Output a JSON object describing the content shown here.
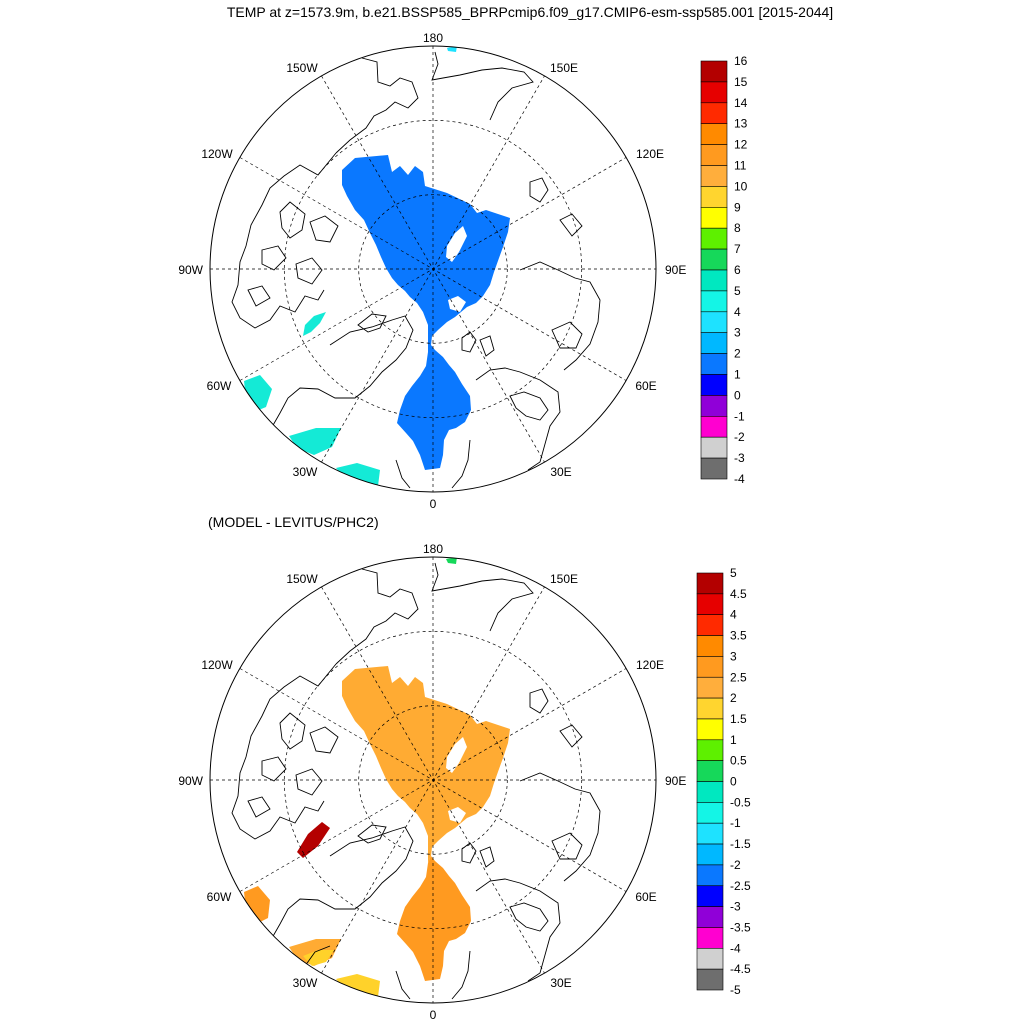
{
  "title": "TEMP at z=1573.9m, b.e21.BSSP585_BPRPcmip6.f09_g17.CMIP6-esm-ssp585.001 [2015-2044]",
  "subtitle": "(MODEL - LEVITUS/PHC2)",
  "lon_labels": {
    "north": "180",
    "south": "0",
    "west": "90W",
    "east": "90E",
    "nw_upper": "150W",
    "nw_lower": "120W",
    "ne_upper": "150E",
    "ne_lower": "120E",
    "sw_upper": "60W",
    "sw_lower": "30W",
    "se_upper": "60E",
    "se_lower": "30E"
  },
  "colors": {
    "land_outline": "#000000",
    "grid": "#000000",
    "upper_field": "#0a78ff",
    "upper_patch_cyan": "#14ead6",
    "lower_field": "#ffab33",
    "lower_field_dark": "#ff9a20",
    "lower_patch_red": "#b40000",
    "lower_patch_yellow": "#ffd22a"
  },
  "legend_top": {
    "labels": [
      "16",
      "15",
      "14",
      "13",
      "12",
      "11",
      "10",
      "9",
      "8",
      "7",
      "6",
      "5",
      "4",
      "3",
      "2",
      "1",
      "0",
      "-1",
      "-2",
      "-3",
      "-4"
    ],
    "colors": [
      "#b30000",
      "#e60000",
      "#ff2a00",
      "#ff8a00",
      "#ff9a1f",
      "#ffae3c",
      "#ffd52f",
      "#ffff00",
      "#5ef000",
      "#16d85a",
      "#00e8c0",
      "#14f5e6",
      "#1ee2ff",
      "#00b8ff",
      "#0a78ff",
      "#0000ff",
      "#9000d8",
      "#ff00d0",
      "#d0d0d0",
      "#6e6e6e"
    ]
  },
  "legend_bottom": {
    "labels": [
      "5",
      "4.5",
      "4",
      "3.5",
      "3",
      "2.5",
      "2",
      "1.5",
      "1",
      "0.5",
      "0",
      "-0.5",
      "-1",
      "-1.5",
      "-2",
      "-2.5",
      "-3",
      "-3.5",
      "-4",
      "-4.5",
      "-5"
    ],
    "colors": [
      "#b30000",
      "#e60000",
      "#ff2a00",
      "#ff8a00",
      "#ff9a1f",
      "#ffae3c",
      "#ffd52f",
      "#ffff00",
      "#5ef000",
      "#16d85a",
      "#00e8c0",
      "#14f5e6",
      "#1ee2ff",
      "#00b8ff",
      "#0a78ff",
      "#0000ff",
      "#9000d8",
      "#ff00d0",
      "#d0d0d0",
      "#6e6e6e"
    ]
  }
}
